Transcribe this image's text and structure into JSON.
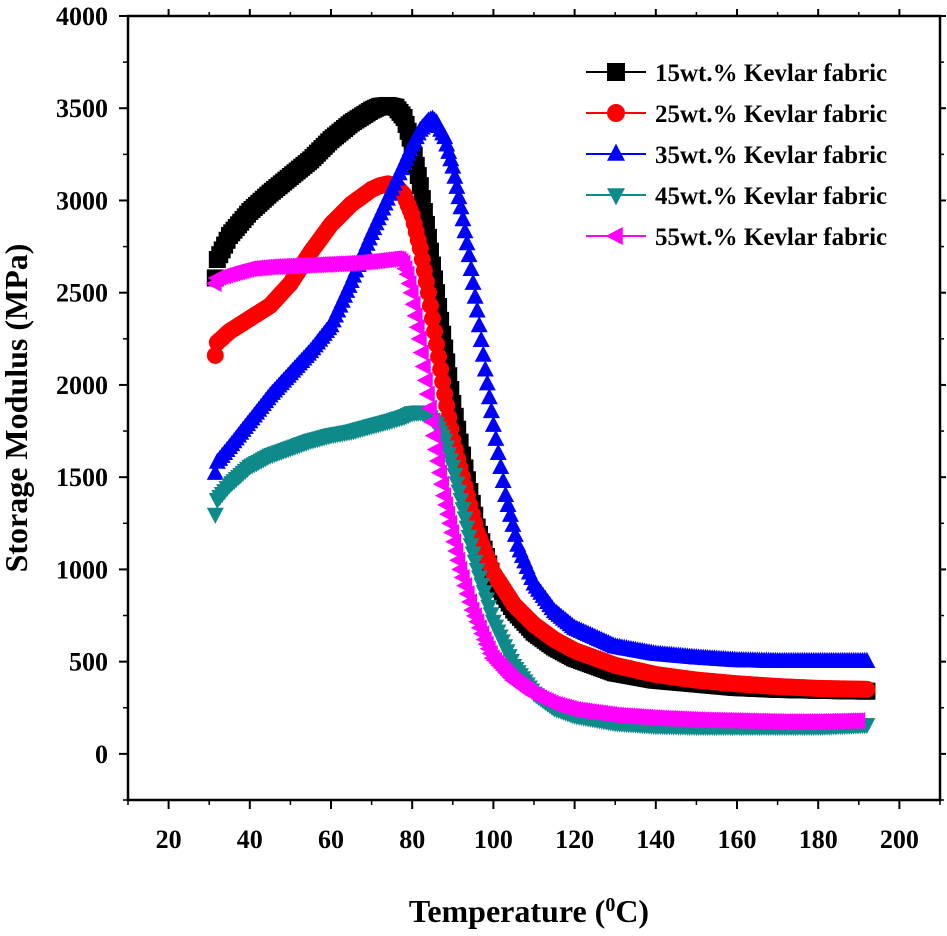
{
  "chart_data": {
    "type": "scatter",
    "title": "",
    "xlabel": "Temperature (",
    "xlabel_sup": "0",
    "xlabel_suffix": "C)",
    "ylabel": "Storage Modulus (MPa)",
    "xlim": [
      10,
      210
    ],
    "ylim": [
      -250,
      4000
    ],
    "xticks": [
      20,
      40,
      60,
      80,
      100,
      120,
      140,
      160,
      180,
      200
    ],
    "yticks": [
      0,
      500,
      1000,
      1500,
      2000,
      2500,
      3000,
      3500,
      4000
    ],
    "grid": false,
    "legend_position": "top-right",
    "series": [
      {
        "name": "15wt.% Kevlar fabric",
        "color": "#000000",
        "marker": "square",
        "x": [
          31.5,
          32,
          35,
          40,
          45,
          50,
          55,
          60,
          65,
          70,
          72,
          74,
          76,
          78,
          80,
          82,
          84,
          86,
          88,
          90,
          93,
          96,
          100,
          105,
          110,
          115,
          120,
          130,
          140,
          150,
          160,
          170,
          180,
          192
        ],
        "y": [
          2580,
          2680,
          2810,
          2940,
          3040,
          3130,
          3220,
          3330,
          3420,
          3490,
          3510,
          3515,
          3505,
          3450,
          3300,
          3080,
          2800,
          2500,
          2200,
          1900,
          1550,
          1230,
          950,
          780,
          660,
          580,
          520,
          440,
          400,
          380,
          360,
          350,
          345,
          340
        ]
      },
      {
        "name": "25wt.% Kevlar fabric",
        "color": "#ff0000",
        "marker": "circle",
        "x": [
          31.5,
          32,
          35,
          40,
          45,
          50,
          55,
          60,
          65,
          70,
          72,
          74,
          76,
          78,
          80,
          82,
          84,
          86,
          88,
          90,
          93,
          96,
          100,
          105,
          110,
          115,
          120,
          130,
          140,
          150,
          160,
          170,
          180,
          192
        ],
        "y": [
          2160,
          2230,
          2290,
          2360,
          2430,
          2550,
          2720,
          2870,
          2980,
          3060,
          3080,
          3090,
          3080,
          3030,
          2920,
          2740,
          2500,
          2220,
          1950,
          1700,
          1450,
          1200,
          980,
          810,
          700,
          620,
          560,
          480,
          430,
          400,
          380,
          365,
          355,
          350
        ]
      },
      {
        "name": "35wt.% Kevlar fabric",
        "color": "#0000ff",
        "marker": "triangle-up",
        "x": [
          31.5,
          32,
          35,
          40,
          45,
          50,
          55,
          60,
          65,
          70,
          75,
          78,
          80,
          82,
          84,
          85,
          86,
          88,
          90,
          92,
          94,
          96,
          98,
          100,
          103,
          106,
          110,
          115,
          120,
          130,
          140,
          150,
          160,
          170,
          180,
          192
        ],
        "y": [
          1520,
          1580,
          1660,
          1800,
          1940,
          2060,
          2180,
          2320,
          2560,
          2820,
          3060,
          3200,
          3300,
          3380,
          3430,
          3440,
          3420,
          3340,
          3180,
          2960,
          2700,
          2400,
          2080,
          1780,
          1400,
          1130,
          920,
          770,
          680,
          580,
          540,
          520,
          505,
          500,
          500,
          500
        ]
      },
      {
        "name": "45wt.% Kevlar fabric",
        "color": "#0f8a8a",
        "marker": "triangle-down",
        "x": [
          31.5,
          32,
          35,
          40,
          45,
          50,
          55,
          60,
          65,
          70,
          75,
          78,
          80,
          82,
          84,
          86,
          88,
          90,
          92,
          94,
          96,
          100,
          105,
          110,
          115,
          120,
          130,
          140,
          150,
          160,
          170,
          180,
          192
        ],
        "y": [
          1300,
          1380,
          1460,
          1560,
          1620,
          1660,
          1700,
          1730,
          1750,
          1780,
          1810,
          1830,
          1850,
          1855,
          1840,
          1790,
          1700,
          1560,
          1380,
          1180,
          1000,
          720,
          480,
          330,
          250,
          210,
          170,
          155,
          150,
          150,
          150,
          150,
          160
        ]
      },
      {
        "name": "55wt.% Kevlar fabric",
        "color": "#ff00ff",
        "marker": "triangle-left",
        "x": [
          31.5,
          32,
          35,
          40,
          45,
          50,
          55,
          60,
          65,
          70,
          74,
          76,
          77,
          78,
          79,
          80,
          82,
          84,
          86,
          88,
          90,
          92,
          95,
          98,
          100,
          105,
          110,
          115,
          120,
          130,
          140,
          150,
          160,
          170,
          180,
          190
        ],
        "y": [
          2550,
          2580,
          2600,
          2630,
          2640,
          2645,
          2650,
          2655,
          2660,
          2670,
          2680,
          2685,
          2680,
          2660,
          2600,
          2500,
          2250,
          1950,
          1650,
          1400,
          1200,
          1000,
          780,
          620,
          520,
          400,
          320,
          270,
          240,
          210,
          195,
          185,
          180,
          175,
          175,
          180
        ]
      }
    ]
  }
}
